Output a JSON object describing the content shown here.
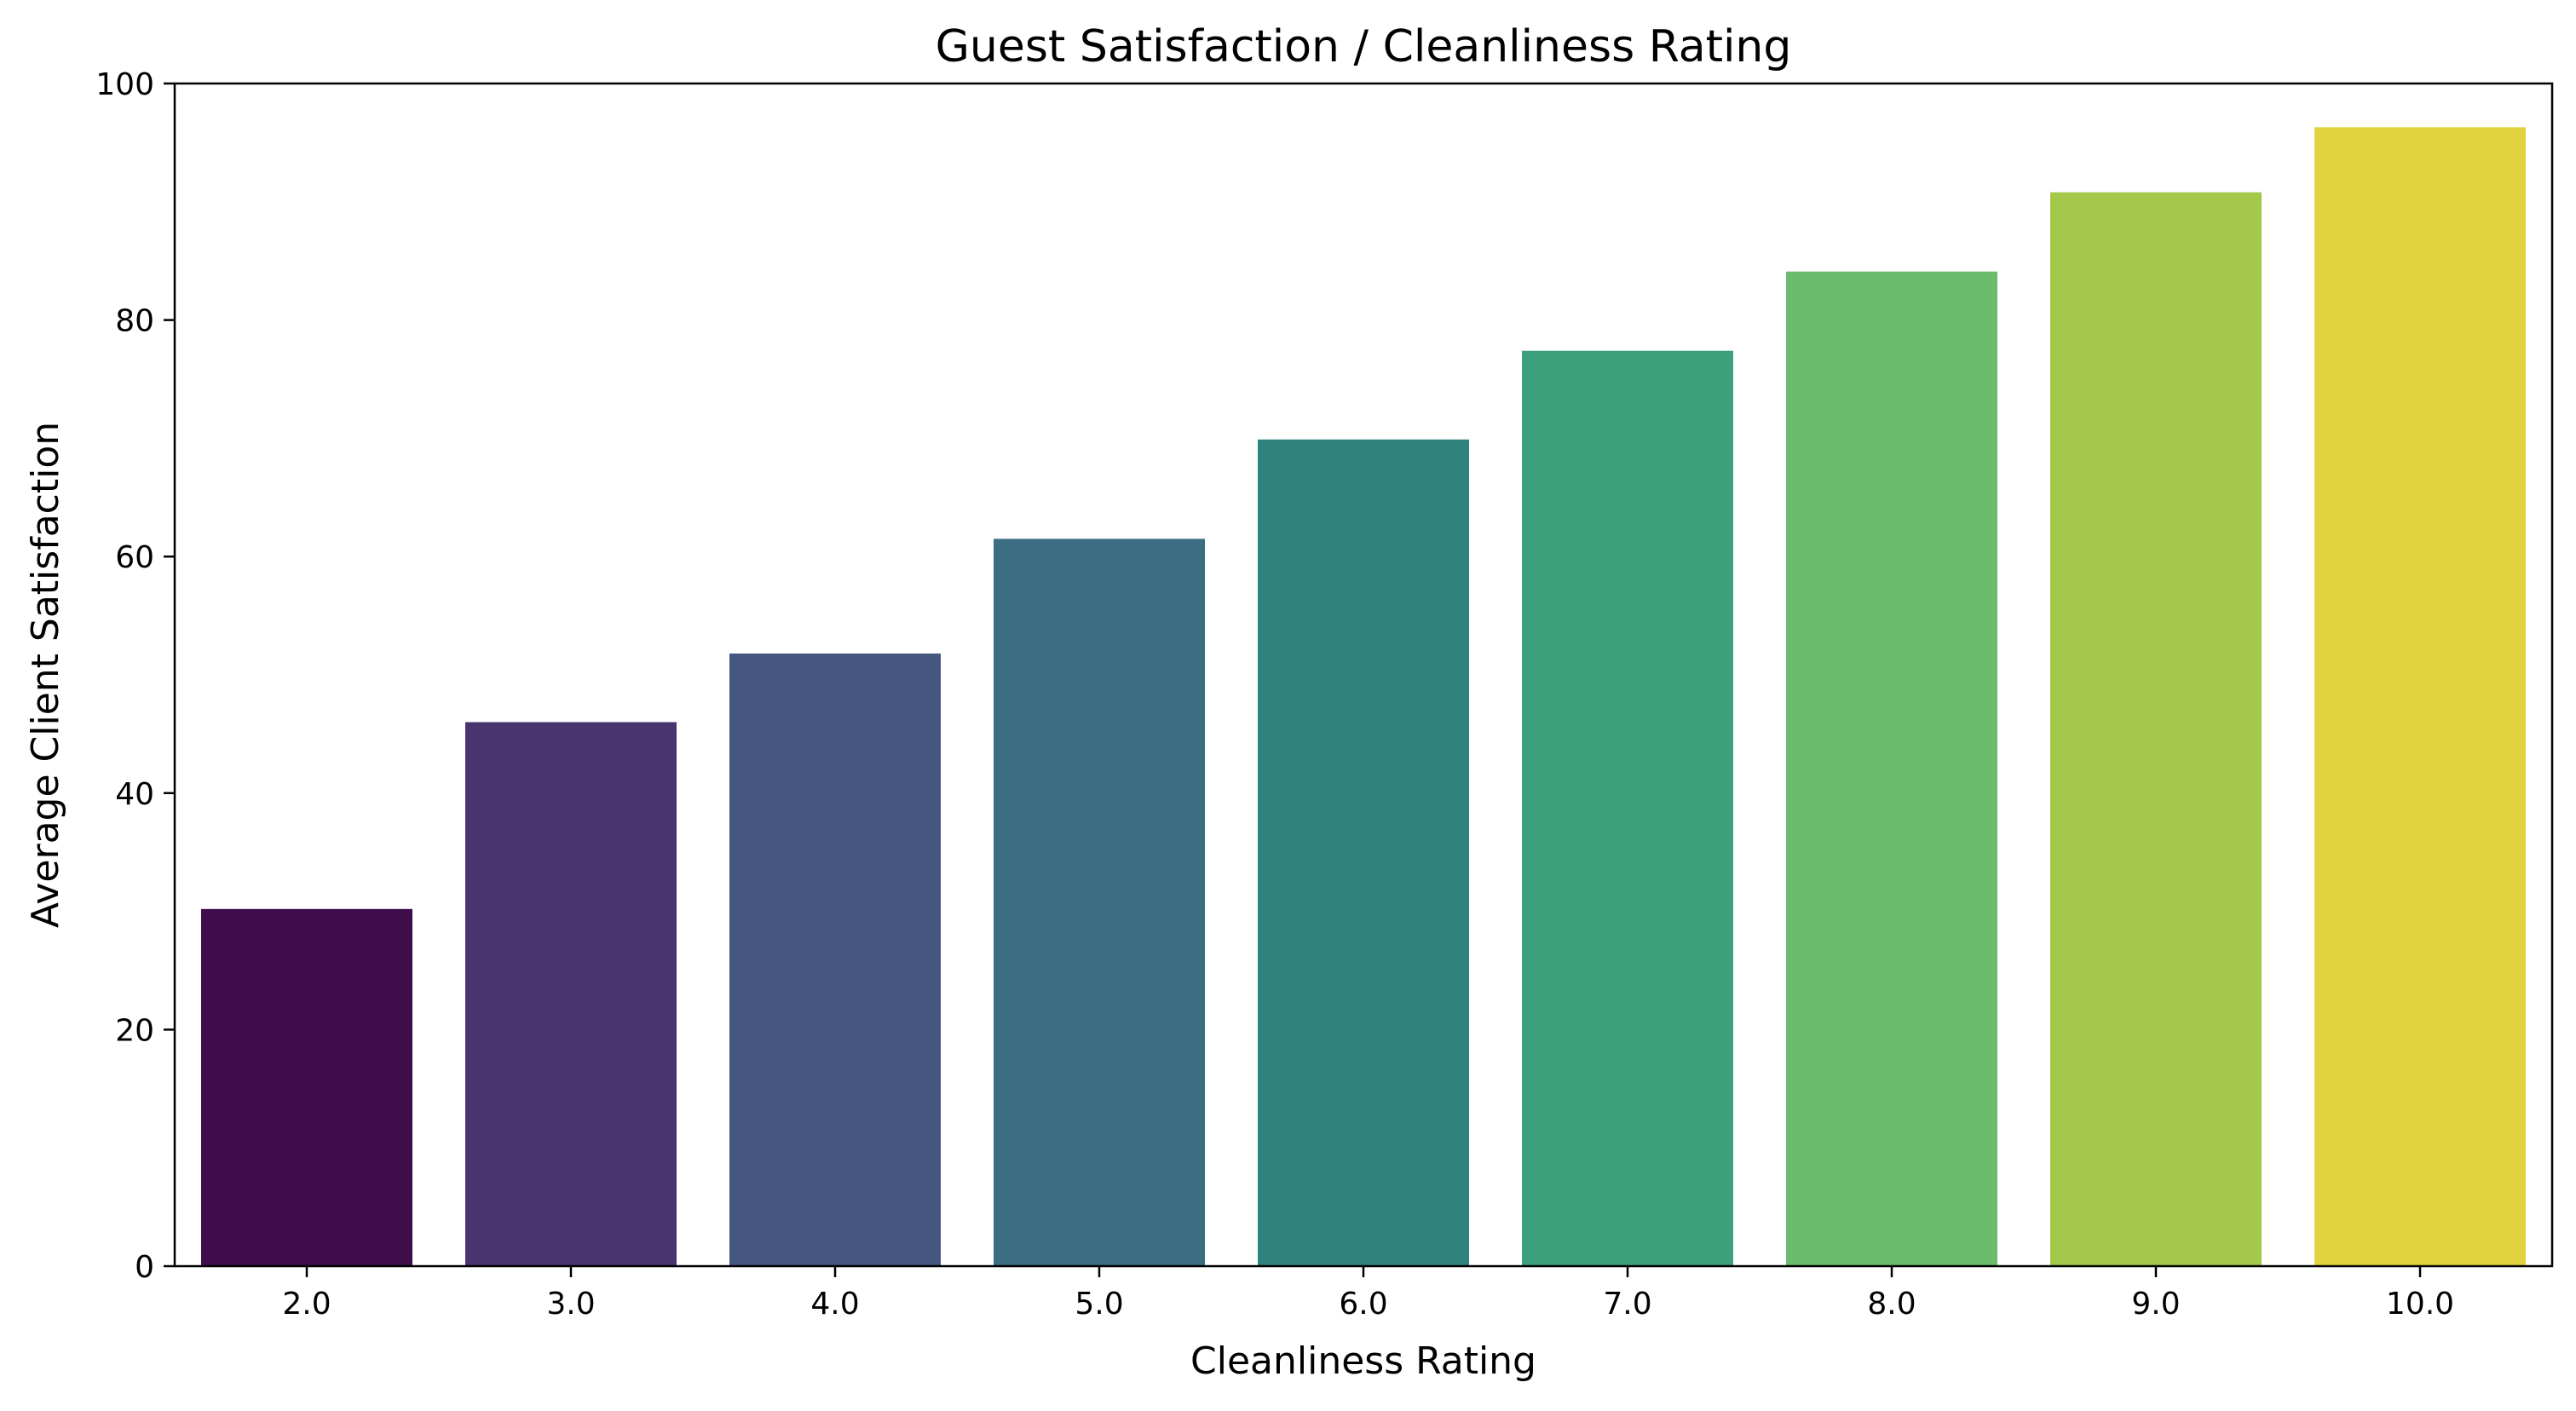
{
  "chart_data": {
    "type": "bar",
    "title": "Guest Satisfaction / Cleanliness Rating",
    "xlabel": "Cleanliness Rating",
    "ylabel": "Average Client Satisfaction",
    "categories": [
      "2.0",
      "3.0",
      "4.0",
      "5.0",
      "6.0",
      "7.0",
      "8.0",
      "9.0",
      "10.0"
    ],
    "values": [
      30.2,
      46.0,
      51.8,
      61.5,
      69.9,
      77.4,
      84.1,
      90.8,
      96.3
    ],
    "colors": [
      "#3e0d4a",
      "#4a346f",
      "#455681",
      "#3b6e83",
      "#2e837e",
      "#3d9f7c",
      "#6bbc6c",
      "#a3c84a",
      "#e1d33e"
    ],
    "ylim": [
      0,
      100
    ],
    "yticks": [
      "0",
      "20",
      "40",
      "60",
      "80",
      "100"
    ],
    "grid": false,
    "legend": "none"
  }
}
